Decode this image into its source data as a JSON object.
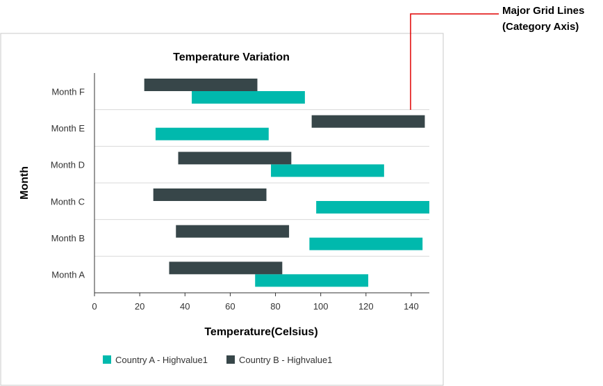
{
  "chart_data": {
    "type": "bar",
    "orientation": "horizontal",
    "title": "Temperature Variation",
    "xlabel": "Temperature(Celsius)",
    "ylabel": "Month",
    "xlim": [
      0,
      148
    ],
    "xticks": [
      0,
      20,
      40,
      60,
      80,
      100,
      120,
      140
    ],
    "categories": [
      "Month A",
      "Month B",
      "Month C",
      "Month D",
      "Month E",
      "Month F"
    ],
    "series": [
      {
        "name": "Country A - Highvalue1",
        "color": "#00b9ad",
        "ranges": [
          [
            71,
            121
          ],
          [
            95,
            145
          ],
          [
            98,
            148
          ],
          [
            78,
            128
          ],
          [
            27,
            77
          ],
          [
            43,
            93
          ]
        ]
      },
      {
        "name": "Country B - Highvalue1",
        "color": "#374649",
        "ranges": [
          [
            33,
            83
          ],
          [
            36,
            86
          ],
          [
            26,
            76
          ],
          [
            37,
            87
          ],
          [
            96,
            146
          ],
          [
            22,
            72
          ]
        ]
      }
    ],
    "grid": "major grid lines on category axis",
    "legend_position": "bottom",
    "annotation": {
      "lines": [
        "Major Grid Lines",
        "(Category Axis)"
      ],
      "color": "#e00000"
    }
  }
}
